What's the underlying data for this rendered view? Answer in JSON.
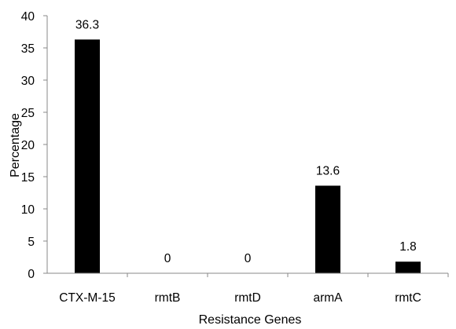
{
  "chart_data": {
    "type": "bar",
    "categories": [
      "CTX-M-15",
      "rmtB",
      "rmtD",
      "armA",
      "rmtC"
    ],
    "values": [
      36.3,
      0,
      0,
      13.6,
      1.8
    ],
    "data_labels": [
      "36.3",
      "0",
      "0",
      "13.6",
      "1.8"
    ],
    "xlabel": "Resistance Genes",
    "ylabel": "Percentage",
    "ylim": [
      0,
      40
    ],
    "yticks": [
      0,
      5,
      10,
      15,
      20,
      25,
      30,
      35,
      40
    ],
    "grid": false,
    "bar_color": "#000000"
  }
}
